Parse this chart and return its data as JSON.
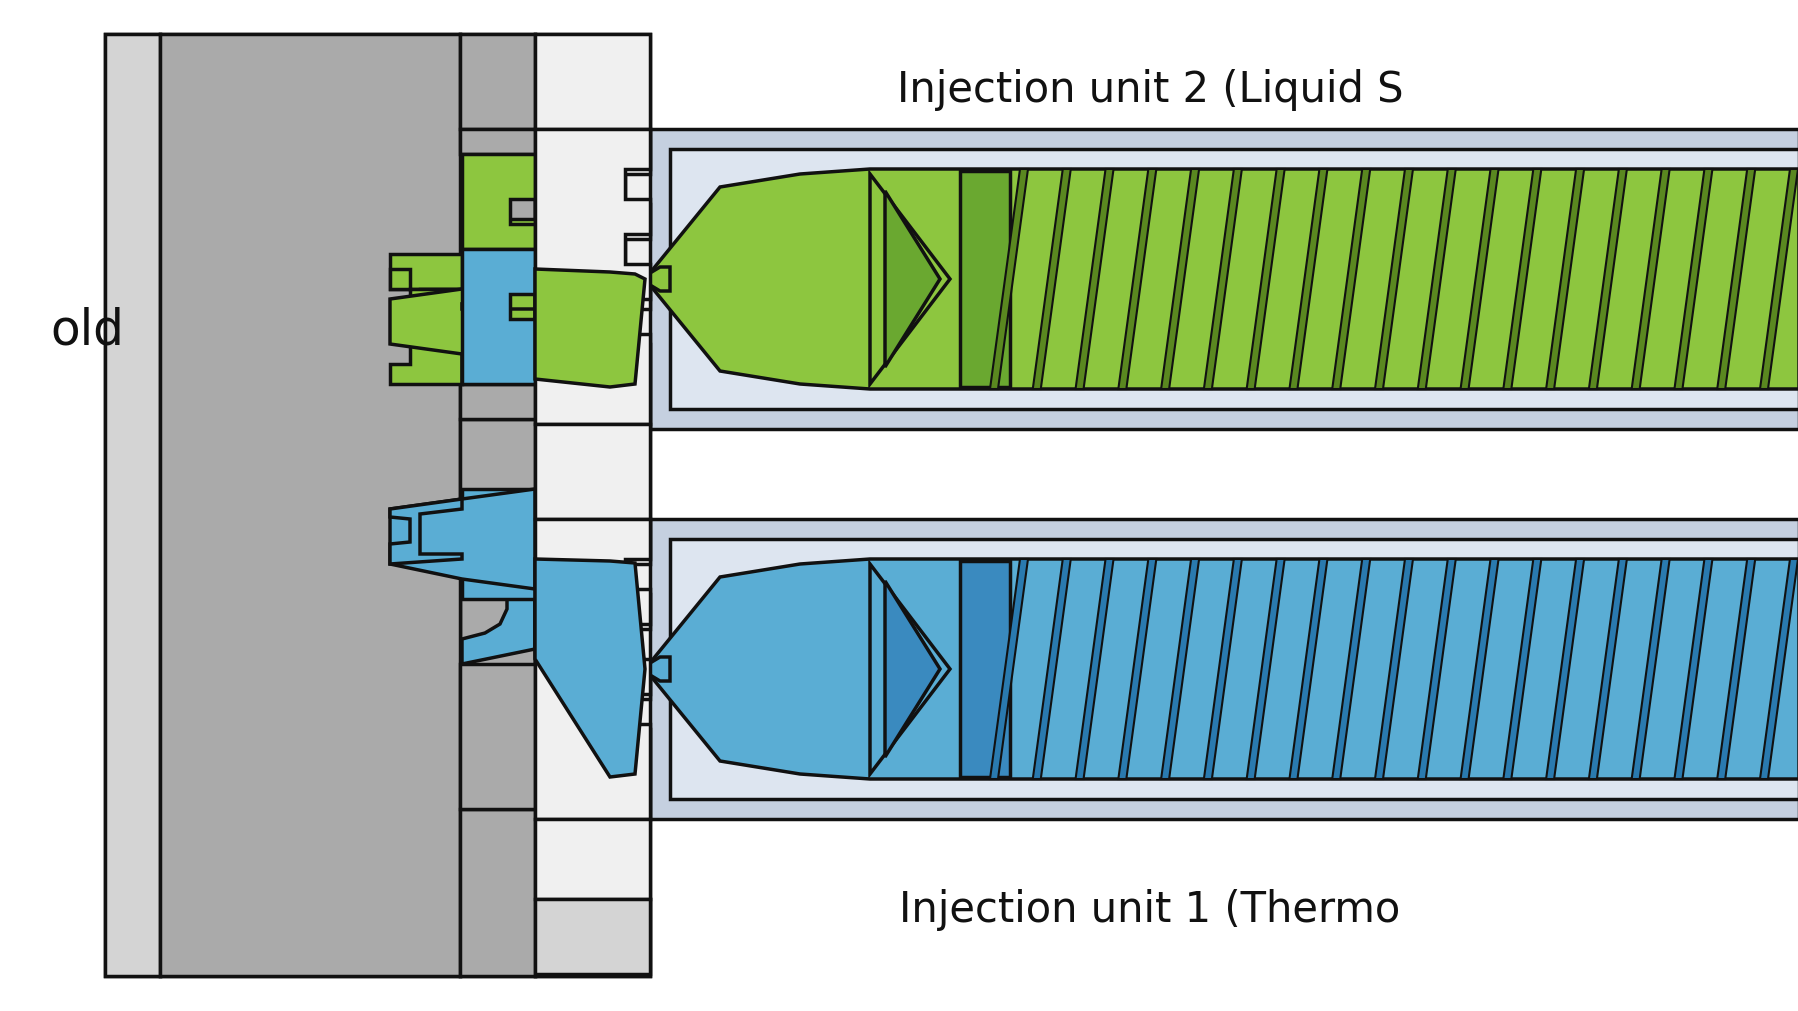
{
  "bg_color": "#ffffff",
  "gray_mold": "#aaaaaa",
  "gray_light": "#d4d4d4",
  "gray_med": "#bbbbbb",
  "white_plate": "#f0f0f0",
  "green": "#8dc63f",
  "blue": "#5aadd4",
  "barrel_casing": "#c5d0e0",
  "barrel_inner_light": "#dde5f0",
  "outline": "#111111",
  "lw": 2.5,
  "label_top": "Injection unit 2 (Liquid S",
  "label_bottom": "Injection unit 1 (Thermo",
  "label_mold": "old",
  "font_size": 30,
  "fig_w": 17.99,
  "fig_h": 10.12
}
